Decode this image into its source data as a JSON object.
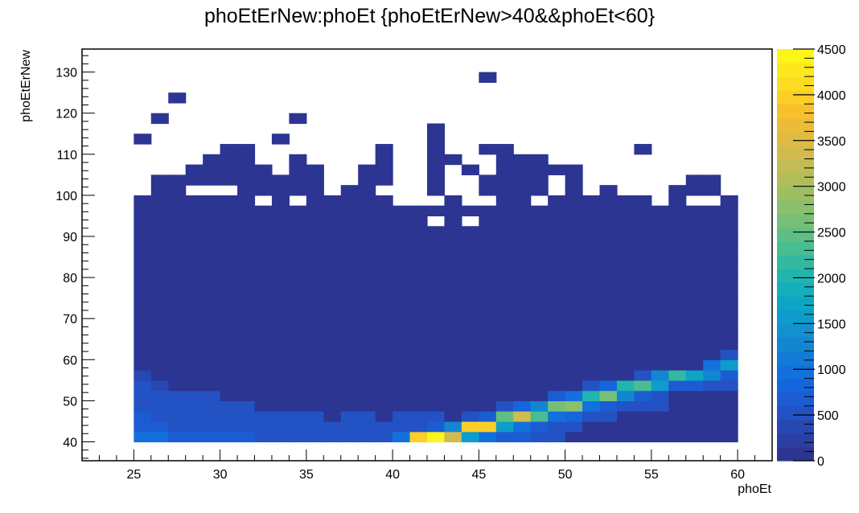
{
  "chart_data": {
    "type": "heatmap",
    "title": "phoEtErNew:phoEt {phoEtErNew>40&&phoEt<60}",
    "xlabel": "phoEt",
    "ylabel": "phoEtErNew",
    "x_range": [
      22,
      62
    ],
    "y_range": [
      35.4,
      135.6
    ],
    "x_ticks": [
      "25",
      "30",
      "35",
      "40",
      "45",
      "50",
      "55",
      "60"
    ],
    "y_ticks": [
      "40",
      "50",
      "60",
      "70",
      "80",
      "90",
      "100",
      "110",
      "120",
      "130"
    ],
    "z_range": [
      0,
      4500
    ],
    "z_ticks": [
      "0",
      "500",
      "1000",
      "1500",
      "2000",
      "2500",
      "3000",
      "3500",
      "4000",
      "4500"
    ],
    "bins": {
      "x_start": 25,
      "x_width": 1,
      "nx": 35,
      "y_start": 40,
      "y_width": 2.5
    },
    "palette": [
      "#2c3592",
      "#2b3fa3",
      "#2748b3",
      "#2352c4",
      "#1c5cd3",
      "#1566dc",
      "#1271dc",
      "#127bd6",
      "#1386d1",
      "#1291ce",
      "#0d9ccb",
      "#0ca6c4",
      "#14afba",
      "#21b5ae",
      "#33b9a0",
      "#48bd91",
      "#5fbf83",
      "#75c076",
      "#8ac06b",
      "#9ebe62",
      "#b1bd5b",
      "#c1bc54",
      "#d1bb4d",
      "#e0bb42",
      "#edbc36",
      "#f8c12c",
      "#fcce27",
      "#fcdc23",
      "#fce81d",
      "#fbf51a"
    ],
    "columns": [
      {
        "x": 25,
        "top": 100,
        "dense": [
          [
            40,
            1000
          ],
          [
            42.5,
            700
          ],
          [
            45,
            700
          ],
          [
            47.5,
            500
          ],
          [
            50,
            500
          ],
          [
            52.5,
            500
          ],
          [
            55,
            400
          ]
        ]
      },
      {
        "x": 26,
        "top": 105,
        "dense": [
          [
            40,
            1000
          ],
          [
            42.5,
            700
          ],
          [
            45,
            500
          ],
          [
            47.5,
            500
          ],
          [
            50,
            500
          ],
          [
            52.5,
            400
          ]
        ]
      },
      {
        "x": 27,
        "top": 105,
        "dense": [
          [
            40,
            700
          ],
          [
            42.5,
            500
          ],
          [
            45,
            500
          ],
          [
            47.5,
            500
          ],
          [
            50,
            500
          ]
        ]
      },
      {
        "x": 28,
        "top": 107.5,
        "dense": [
          [
            40,
            700
          ],
          [
            42.5,
            500
          ],
          [
            45,
            500
          ],
          [
            47.5,
            500
          ],
          [
            50,
            500
          ]
        ]
      },
      {
        "x": 29,
        "top": 110,
        "dense": [
          [
            40,
            700
          ],
          [
            42.5,
            500
          ],
          [
            45,
            500
          ],
          [
            47.5,
            500
          ],
          [
            50,
            500
          ]
        ]
      },
      {
        "x": 30,
        "top": 112.5,
        "dense": [
          [
            40,
            700
          ],
          [
            42.5,
            500
          ],
          [
            45,
            500
          ],
          [
            47.5,
            500
          ]
        ]
      },
      {
        "x": 31,
        "top": 112.5,
        "dense": [
          [
            40,
            700
          ],
          [
            42.5,
            500
          ],
          [
            45,
            500
          ],
          [
            47.5,
            500
          ]
        ]
      },
      {
        "x": 32,
        "top": 107.5,
        "dense": [
          [
            40,
            500
          ],
          [
            42.5,
            500
          ],
          [
            45,
            500
          ]
        ]
      },
      {
        "x": 33,
        "top": 105,
        "dense": [
          [
            40,
            500
          ],
          [
            42.5,
            500
          ],
          [
            45,
            500
          ]
        ]
      },
      {
        "x": 34,
        "top": 110,
        "dense": [
          [
            40,
            500
          ],
          [
            42.5,
            500
          ],
          [
            45,
            500
          ]
        ]
      },
      {
        "x": 35,
        "top": 107.5,
        "dense": [
          [
            40,
            500
          ],
          [
            42.5,
            500
          ],
          [
            45,
            500
          ]
        ]
      },
      {
        "x": 36,
        "top": 100,
        "dense": [
          [
            40,
            500
          ],
          [
            42.5,
            500
          ]
        ]
      },
      {
        "x": 37,
        "top": 102.5,
        "dense": [
          [
            40,
            500
          ],
          [
            42.5,
            500
          ],
          [
            45,
            500
          ]
        ]
      },
      {
        "x": 38,
        "top": 107.5,
        "dense": [
          [
            40,
            500
          ],
          [
            42.5,
            500
          ],
          [
            45,
            500
          ]
        ]
      },
      {
        "x": 39,
        "top": 112.5,
        "dense": [
          [
            40,
            500
          ],
          [
            42.5,
            500
          ]
        ]
      },
      {
        "x": 40,
        "top": 100,
        "dense": [
          [
            40,
            1000
          ],
          [
            42.5,
            500
          ],
          [
            45,
            500
          ]
        ]
      },
      {
        "x": 41,
        "top": 97.5,
        "dense": [
          [
            40,
            3900
          ],
          [
            42.5,
            500
          ],
          [
            45,
            500
          ]
        ]
      },
      {
        "x": 42,
        "top": 117.5,
        "dense": [
          [
            40,
            4500
          ],
          [
            42.5,
            700
          ],
          [
            45,
            500
          ]
        ]
      },
      {
        "x": 43,
        "top": 100,
        "dense": [
          [
            40,
            3400
          ],
          [
            42.5,
            1300
          ]
        ]
      },
      {
        "x": 44,
        "top": 100,
        "dense": [
          [
            40,
            1500
          ],
          [
            42.5,
            3900
          ],
          [
            45,
            500
          ]
        ]
      },
      {
        "x": 45,
        "top": 105,
        "dense": [
          [
            40,
            1000
          ],
          [
            42.5,
            4000
          ],
          [
            45,
            700
          ]
        ]
      },
      {
        "x": 46,
        "top": 112.5,
        "dense": [
          [
            40,
            700
          ],
          [
            42.5,
            1500
          ],
          [
            45,
            2500
          ],
          [
            47.5,
            500
          ]
        ]
      },
      {
        "x": 47,
        "top": 110,
        "dense": [
          [
            40,
            700
          ],
          [
            42.5,
            1000
          ],
          [
            45,
            3300
          ],
          [
            47.5,
            800
          ]
        ]
      },
      {
        "x": 48,
        "top": 110,
        "dense": [
          [
            40,
            500
          ],
          [
            42.5,
            700
          ],
          [
            45,
            2300
          ],
          [
            47.5,
            1300
          ]
        ]
      },
      {
        "x": 49,
        "top": 100,
        "dense": [
          [
            40,
            500
          ],
          [
            42.5,
            500
          ],
          [
            45,
            1000
          ],
          [
            47.5,
            2600
          ],
          [
            50,
            700
          ]
        ]
      },
      {
        "x": 50,
        "top": 107.5,
        "dense": [
          [
            42.5,
            500
          ],
          [
            45,
            800
          ],
          [
            47.5,
            2700
          ],
          [
            50,
            1000
          ]
        ]
      },
      {
        "x": 51,
        "top": 102.5,
        "dense": [
          [
            45,
            500
          ],
          [
            47.5,
            1000
          ],
          [
            50,
            2000
          ],
          [
            52.5,
            500
          ]
        ]
      },
      {
        "x": 52,
        "top": 102.5,
        "dense": [
          [
            45,
            500
          ],
          [
            47.5,
            700
          ],
          [
            50,
            2600
          ],
          [
            52.5,
            800
          ]
        ]
      },
      {
        "x": 53,
        "top": 100,
        "dense": [
          [
            47.5,
            500
          ],
          [
            50,
            1300
          ],
          [
            52.5,
            2000
          ]
        ]
      },
      {
        "x": 54,
        "top": 100,
        "dense": [
          [
            47.5,
            500
          ],
          [
            50,
            700
          ],
          [
            52.5,
            2300
          ],
          [
            55,
            500
          ]
        ]
      },
      {
        "x": 55,
        "top": 100,
        "dense": [
          [
            47.5,
            500
          ],
          [
            50,
            500
          ],
          [
            52.5,
            1500
          ],
          [
            55,
            1300
          ]
        ]
      },
      {
        "x": 56,
        "top": 102.5,
        "dense": [
          [
            52.5,
            700
          ],
          [
            55,
            2200
          ]
        ]
      },
      {
        "x": 57,
        "top": 105,
        "dense": [
          [
            52.5,
            700
          ],
          [
            55,
            1700
          ]
        ]
      },
      {
        "x": 58,
        "top": 105,
        "dense": [
          [
            52.5,
            500
          ],
          [
            55,
            1300
          ],
          [
            57.5,
            1000
          ]
        ]
      },
      {
        "x": 59,
        "top": 100,
        "dense": [
          [
            52.5,
            500
          ],
          [
            55,
            700
          ],
          [
            57.5,
            1500
          ],
          [
            60,
            500
          ]
        ]
      }
    ],
    "holes": [
      {
        "x": 25,
        "y": 100
      },
      {
        "x": 28,
        "y": 100
      },
      {
        "x": 29,
        "y": 100
      },
      {
        "x": 30,
        "y": 100
      },
      {
        "x": 32,
        "y": 97.5
      },
      {
        "x": 34,
        "y": 97.5
      },
      {
        "x": 39,
        "y": 100
      },
      {
        "x": 40,
        "y": 97.5
      },
      {
        "x": 42,
        "y": 92.5
      },
      {
        "x": 44,
        "y": 92.5
      },
      {
        "x": 42,
        "y": 97.5
      },
      {
        "x": 44,
        "y": 97.5
      },
      {
        "x": 45,
        "y": 97.5
      },
      {
        "x": 48,
        "y": 97.5
      },
      {
        "x": 51,
        "y": 100
      },
      {
        "x": 55,
        "y": 97.5
      },
      {
        "x": 57,
        "y": 97.5
      },
      {
        "x": 58,
        "y": 97.5
      }
    ],
    "strays": [
      {
        "x": 45,
        "y": 127.5
      },
      {
        "x": 27,
        "y": 122.5
      },
      {
        "x": 26,
        "y": 117.5
      },
      {
        "x": 34,
        "y": 117.5
      },
      {
        "x": 25,
        "y": 112.5
      },
      {
        "x": 33,
        "y": 112.5
      },
      {
        "x": 45,
        "y": 110
      },
      {
        "x": 43,
        "y": 107.5
      },
      {
        "x": 54,
        "y": 110
      },
      {
        "x": 49,
        "y": 105
      },
      {
        "x": 44,
        "y": 105
      }
    ],
    "grid": false,
    "legend": "right"
  }
}
